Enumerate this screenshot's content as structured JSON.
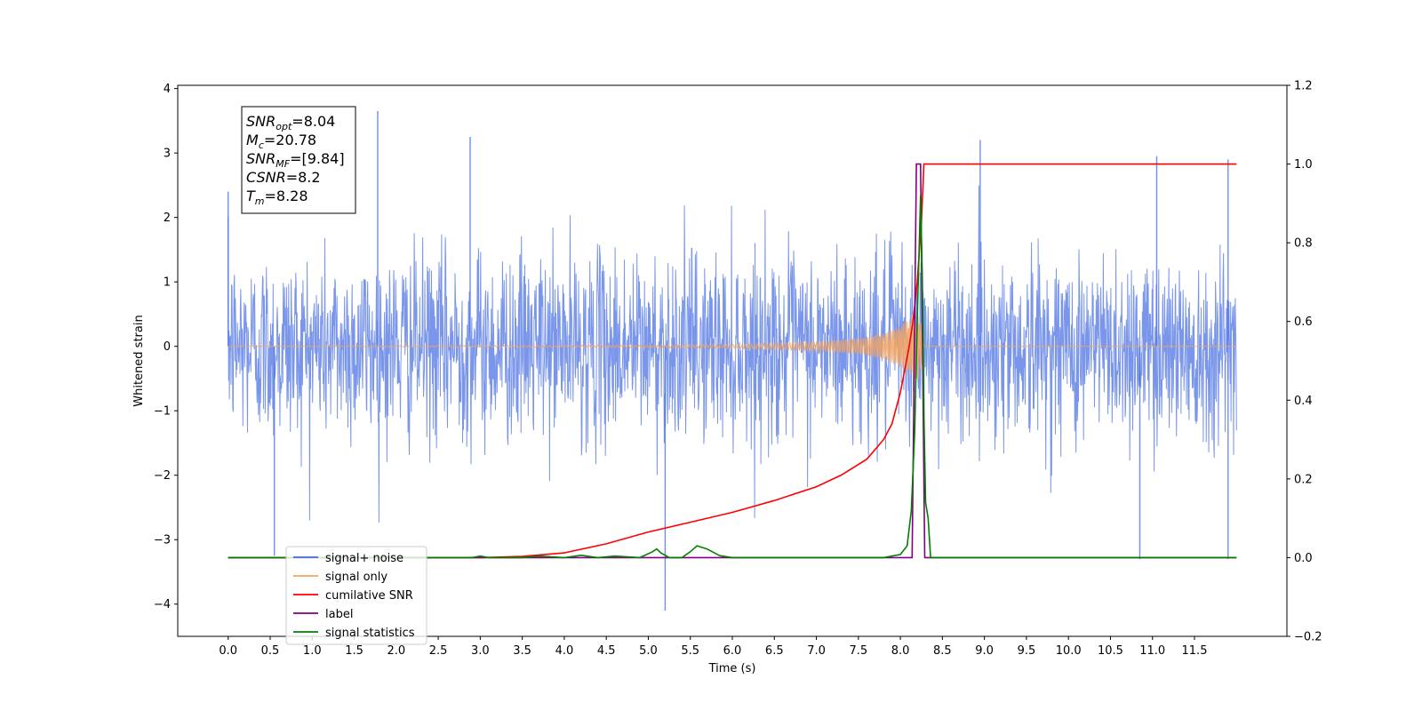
{
  "chart_data": {
    "type": "line",
    "xlabel": "Time (s)",
    "ylabel": "Whitened strain",
    "xlim": [
      -0.6,
      12.6
    ],
    "ylim": [
      -4.5,
      4.05
    ],
    "ylim_right": [
      -0.2,
      1.2
    ],
    "x_ticks": [
      0.0,
      0.5,
      1.0,
      1.5,
      2.0,
      2.5,
      3.0,
      3.5,
      4.0,
      4.5,
      5.0,
      5.5,
      6.0,
      6.5,
      7.0,
      7.5,
      8.0,
      8.5,
      9.0,
      9.5,
      10.0,
      10.5,
      11.0,
      11.5
    ],
    "x_tick_labels": [
      "0.0",
      "0.5",
      "1.0",
      "1.5",
      "2.0",
      "2.5",
      "3.0",
      "3.5",
      "4.0",
      "4.5",
      "5.0",
      "5.5",
      "6.0",
      "6.5",
      "7.0",
      "7.5",
      "8.0",
      "8.5",
      "9.0",
      "9.5",
      "10.0",
      "10.5",
      "11.0",
      "11.5"
    ],
    "y_ticks": [
      4,
      3,
      2,
      1,
      0,
      -1,
      -2,
      -3,
      -4
    ],
    "y_tick_labels": [
      "4",
      "3",
      "2",
      "1",
      "0",
      "−1",
      "−2",
      "−3",
      "−4"
    ],
    "y_right_ticks": [
      1.2,
      1.0,
      0.8,
      0.6,
      0.4,
      0.2,
      0.0,
      -0.2
    ],
    "y_right_tick_labels": [
      "1.2",
      "1.0",
      "0.8",
      "0.6",
      "0.4",
      "0.2",
      "0.0",
      "−0.2"
    ],
    "grid": false,
    "legend_position": "lower-left",
    "info_box": [
      {
        "sym": "SNR",
        "sub": "opt",
        "val": "=8.04"
      },
      {
        "sym": "M",
        "sub": "c",
        "val": "=20.78"
      },
      {
        "sym": "SNR",
        "sub": "MF",
        "val": "=[9.84]"
      },
      {
        "sym": "CSNR",
        "sub": "",
        "val": "=8.2"
      },
      {
        "sym": "T",
        "sub": "m",
        "val": "=8.28"
      }
    ],
    "series": [
      {
        "name": "signal+ noise",
        "color": "#4169e1",
        "axis": "left",
        "kind": "noise",
        "x_range": [
          0.0,
          12.0
        ],
        "band": [
          -1.6,
          1.6
        ],
        "peaks": [
          [
            0.0,
            2.4
          ],
          [
            0.55,
            -3.25
          ],
          [
            1.78,
            3.65
          ],
          [
            2.88,
            3.25
          ],
          [
            5.2,
            -4.1
          ],
          [
            8.95,
            3.2
          ],
          [
            10.85,
            -3.3
          ],
          [
            11.05,
            2.95
          ],
          [
            11.9,
            -3.3
          ],
          [
            11.9,
            2.9
          ]
        ]
      },
      {
        "name": "signal only",
        "color": "#f4a460",
        "axis": "left",
        "kind": "chirp",
        "x_range": [
          0.0,
          12.0
        ],
        "merger_time": 8.28,
        "envelope": [
          [
            0.0,
            0.0
          ],
          [
            5.0,
            0.02
          ],
          [
            6.0,
            0.03
          ],
          [
            7.0,
            0.07
          ],
          [
            7.5,
            0.12
          ],
          [
            7.8,
            0.2
          ],
          [
            8.0,
            0.32
          ],
          [
            8.1,
            0.42
          ],
          [
            8.2,
            0.55
          ],
          [
            8.25,
            0.4
          ],
          [
            8.28,
            0.0
          ]
        ]
      },
      {
        "name": "cumilative SNR",
        "color": "#ff0000",
        "axis": "right",
        "kind": "line",
        "x": [
          0.0,
          3.0,
          3.5,
          4.0,
          4.5,
          5.0,
          5.5,
          6.0,
          6.5,
          7.0,
          7.3,
          7.6,
          7.8,
          7.9,
          8.0,
          8.1,
          8.15,
          8.2,
          8.25,
          8.28,
          8.3,
          12.0
        ],
        "y": [
          0.0,
          0.0,
          0.003,
          0.012,
          0.035,
          0.065,
          0.09,
          0.115,
          0.145,
          0.18,
          0.21,
          0.25,
          0.3,
          0.34,
          0.42,
          0.53,
          0.6,
          0.7,
          0.85,
          1.0,
          1.0,
          1.0
        ]
      },
      {
        "name": "label",
        "color": "#800080",
        "axis": "right",
        "kind": "line",
        "x": [
          0.0,
          8.14,
          8.19,
          8.24,
          8.29,
          12.0
        ],
        "y": [
          0.0,
          0.0,
          1.0,
          1.0,
          0.0,
          0.0
        ]
      },
      {
        "name": "signal statistics",
        "color": "#008000",
        "axis": "right",
        "kind": "line",
        "x": [
          0.0,
          2.9,
          3.0,
          3.1,
          3.5,
          3.7,
          4.0,
          4.2,
          4.4,
          4.6,
          4.9,
          5.05,
          5.1,
          5.15,
          5.25,
          5.4,
          5.5,
          5.58,
          5.7,
          5.85,
          6.0,
          7.8,
          8.0,
          8.08,
          8.13,
          8.17,
          8.2,
          8.24,
          8.26,
          8.28,
          8.3,
          8.33,
          8.36,
          8.4,
          12.0
        ],
        "y": [
          0.0,
          0.0,
          0.004,
          0.0,
          0.0,
          0.004,
          0.0,
          0.006,
          0.0,
          0.004,
          0.0,
          0.015,
          0.022,
          0.012,
          0.0,
          0.0,
          0.015,
          0.03,
          0.022,
          0.005,
          0.0,
          0.0,
          0.008,
          0.03,
          0.12,
          0.32,
          0.6,
          0.92,
          0.72,
          0.36,
          0.14,
          0.1,
          0.0,
          0.0,
          0.0
        ]
      }
    ]
  },
  "legend": {
    "items": [
      {
        "label": "signal+ noise",
        "color": "#4169e1"
      },
      {
        "label": "signal only",
        "color": "#f4a460"
      },
      {
        "label": "cumilative SNR",
        "color": "#ff0000"
      },
      {
        "label": "label",
        "color": "#800080"
      },
      {
        "label": "signal statistics",
        "color": "#008000"
      }
    ]
  }
}
